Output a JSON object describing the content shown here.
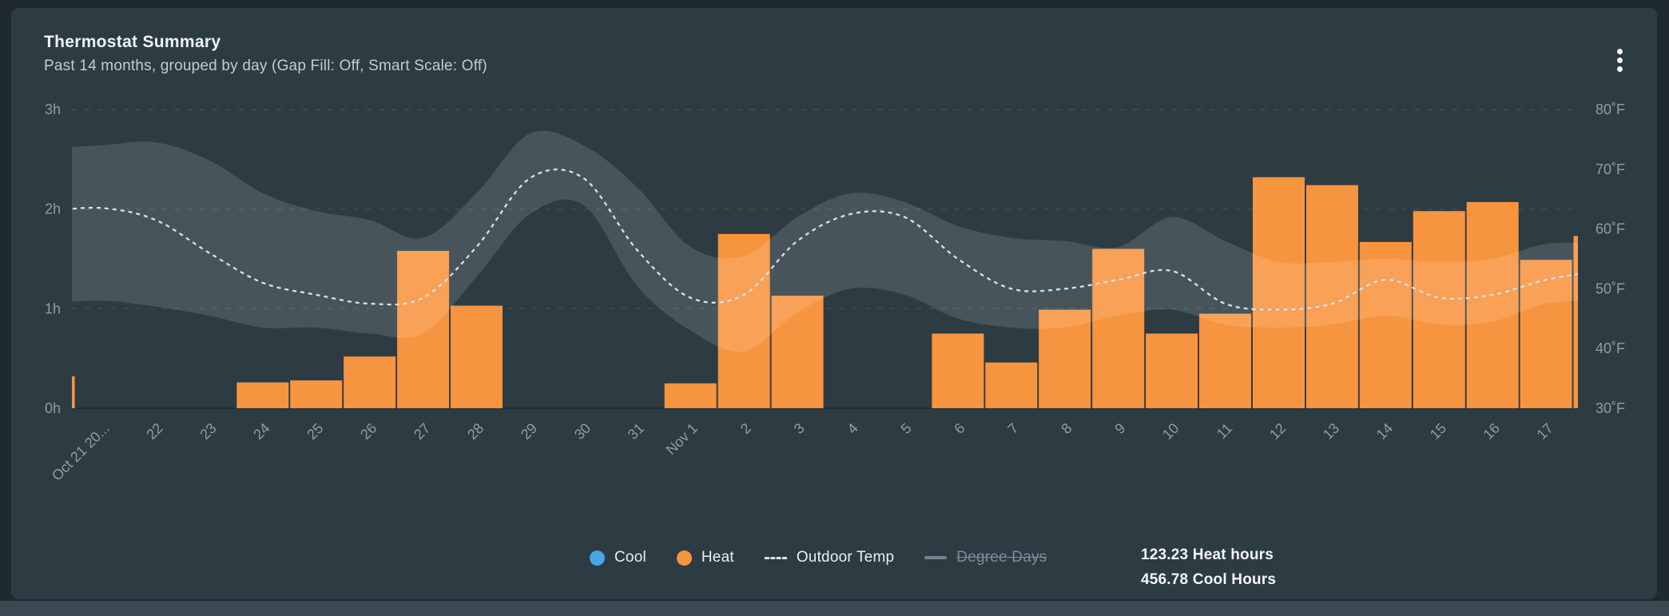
{
  "card": {
    "title": "Thermostat Summary",
    "subtitle": "Past 14 months, grouped by day (Gap Fill: Off, Smart Scale: Off)"
  },
  "totals": {
    "heat": "123.23 Heat hours",
    "cool": "456.78 Cool Hours"
  },
  "legend": [
    {
      "id": "cool",
      "label": "Cool",
      "swatch": "circle",
      "color": "#4aa4e8",
      "disabled": false
    },
    {
      "id": "heat",
      "label": "Heat",
      "swatch": "circle",
      "color": "#f7943f",
      "disabled": false
    },
    {
      "id": "outdoor-temp",
      "label": "Outdoor Temp",
      "swatch": "dash",
      "color": "#d9e1e4",
      "disabled": false
    },
    {
      "id": "degree-days",
      "label": "Degree Days",
      "swatch": "line",
      "color": "#72838c",
      "disabled": true
    }
  ],
  "colors": {
    "page_bg": "#1f2a30",
    "page_strip": "#3b4a52",
    "card_bg": "#2d3b43",
    "heat": "#f7943f",
    "cool": "#4aa4e8",
    "outdoor_line": "#d9e1e4",
    "degree_days": "#72838c",
    "band": "rgba(255,255,255,0.13)",
    "axis_text": "#8f9da5"
  },
  "chart_data": {
    "type": "combo",
    "title": "Thermostat Summary",
    "grid": "horizontal-dashed",
    "legend_position": "bottom-center",
    "y_left": {
      "unit": "hours",
      "min": 0,
      "max": 3,
      "ticks": [
        {
          "label": "3h",
          "value": 3
        },
        {
          "label": "2h",
          "value": 2
        },
        {
          "label": "1h",
          "value": 1
        },
        {
          "label": "0h",
          "value": 0
        }
      ]
    },
    "y_right": {
      "unit": "°F",
      "min": 30,
      "max": 80,
      "ticks": [
        {
          "label": "80˚F",
          "value": 80
        },
        {
          "label": "70˚F",
          "value": 70
        },
        {
          "label": "60˚F",
          "value": 60
        },
        {
          "label": "50˚F",
          "value": 50
        },
        {
          "label": "40˚F",
          "value": 40
        },
        {
          "label": "30˚F",
          "value": 30
        }
      ]
    },
    "x_labels": [
      "",
      "Oct 21 20...",
      "22",
      "23",
      "24",
      "25",
      "26",
      "27",
      "28",
      "29",
      "30",
      "31",
      "Nov 1",
      "2",
      "3",
      "4",
      "5",
      "6",
      "7",
      "8",
      "9",
      "10",
      "11",
      "12",
      "13",
      "14",
      "15",
      "16",
      "17",
      ""
    ],
    "note": "first and last entries are partially clipped unlabeled edge days",
    "series": [
      {
        "name": "Heat",
        "type": "bar",
        "unit": "h",
        "color": "#f7943f",
        "values": [
          0.32,
          0,
          0,
          0,
          0.26,
          0.28,
          0.52,
          1.58,
          1.03,
          0,
          0,
          0,
          0.25,
          1.75,
          1.13,
          0,
          0,
          0.75,
          0.46,
          0.99,
          1.6,
          0.75,
          0.95,
          2.32,
          2.24,
          1.67,
          1.98,
          2.07,
          1.49,
          1.73
        ]
      },
      {
        "name": "Cool",
        "type": "bar",
        "unit": "h",
        "color": "#4aa4e8",
        "values": [
          0,
          0,
          0,
          0,
          0,
          0,
          0,
          0,
          0,
          0,
          0,
          0,
          0,
          0,
          0,
          0,
          0,
          0,
          0,
          0,
          0,
          0,
          0,
          0,
          0,
          0,
          0,
          0,
          0,
          0
        ]
      },
      {
        "name": "Outdoor Temp",
        "type": "line",
        "style": "dashed",
        "unit": "°F",
        "color": "#d9e1e4",
        "values": [
          63,
          63.5,
          61.5,
          56,
          51,
          49,
          47.5,
          48.5,
          57,
          68.5,
          68.5,
          56.5,
          48.5,
          49,
          58,
          62.5,
          62,
          55,
          50,
          50,
          51.5,
          53,
          47.5,
          46.5,
          47.5,
          51.5,
          48.5,
          49,
          51.5,
          53
        ]
      },
      {
        "name": "Outdoor Temp Range",
        "type": "band",
        "unit": "°F",
        "color": "rgba(255,255,255,0.13)",
        "high": [
          73.5,
          74,
          74.5,
          71.5,
          66,
          63,
          61.5,
          58.5,
          66,
          76,
          74,
          67,
          57,
          55.5,
          62,
          66,
          64.5,
          60.5,
          58.5,
          58,
          57,
          62,
          58,
          54.5,
          54.5,
          55,
          54.5,
          55,
          57.5,
          57.5
        ],
        "low": [
          47.5,
          48,
          47,
          45.5,
          43.5,
          43.5,
          42.5,
          42.5,
          52,
          62.5,
          64,
          50.5,
          43,
          39.5,
          46,
          50,
          49,
          45,
          43.5,
          43.5,
          45.5,
          46.5,
          44,
          43.5,
          44,
          45.5,
          44,
          44.5,
          47.5,
          48
        ]
      },
      {
        "name": "Degree Days",
        "type": "line",
        "style": "solid",
        "color": "#72838c",
        "disabled": true,
        "values": []
      }
    ]
  }
}
